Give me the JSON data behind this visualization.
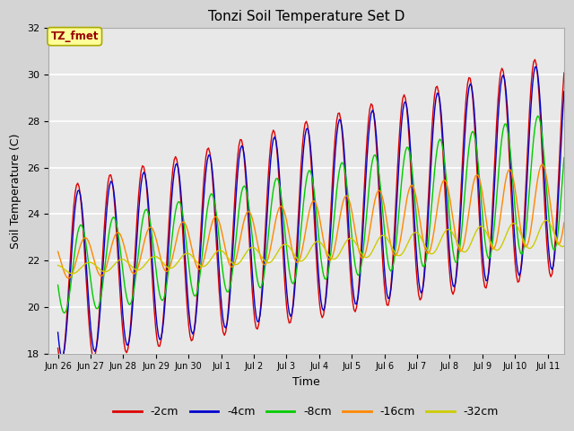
{
  "title": "Tonzi Soil Temperature Set D",
  "xlabel": "Time",
  "ylabel": "Soil Temperature (C)",
  "ylim": [
    18,
    32
  ],
  "legend_labels": [
    "-2cm",
    "-4cm",
    "-8cm",
    "-16cm",
    "-32cm"
  ],
  "legend_colors": [
    "#dd0000",
    "#0000cc",
    "#00cc00",
    "#ff8800",
    "#cccc00"
  ],
  "annotation_text": "TZ_fmet",
  "annotation_bg": "#ffff99",
  "annotation_fg": "#990000",
  "tick_labels": [
    "Jun 26",
    "Jun 27",
    "Jun 28",
    "Jun 29",
    "Jun 30",
    "Jul 1",
    "Jul 2",
    "Jul 3",
    "Jul 4",
    "Jul 5",
    "Jul 6",
    "Jul 7",
    "Jul 8",
    "Jul 9",
    "Jul 10",
    "Jul 11"
  ],
  "tick_positions": [
    0,
    1,
    2,
    3,
    4,
    5,
    6,
    7,
    8,
    9,
    10,
    11,
    12,
    13,
    14,
    15
  ],
  "yticks": [
    18,
    20,
    22,
    24,
    26,
    28,
    30,
    32
  ],
  "fig_bg": "#d4d4d4",
  "plot_bg": "#e8e8e8"
}
